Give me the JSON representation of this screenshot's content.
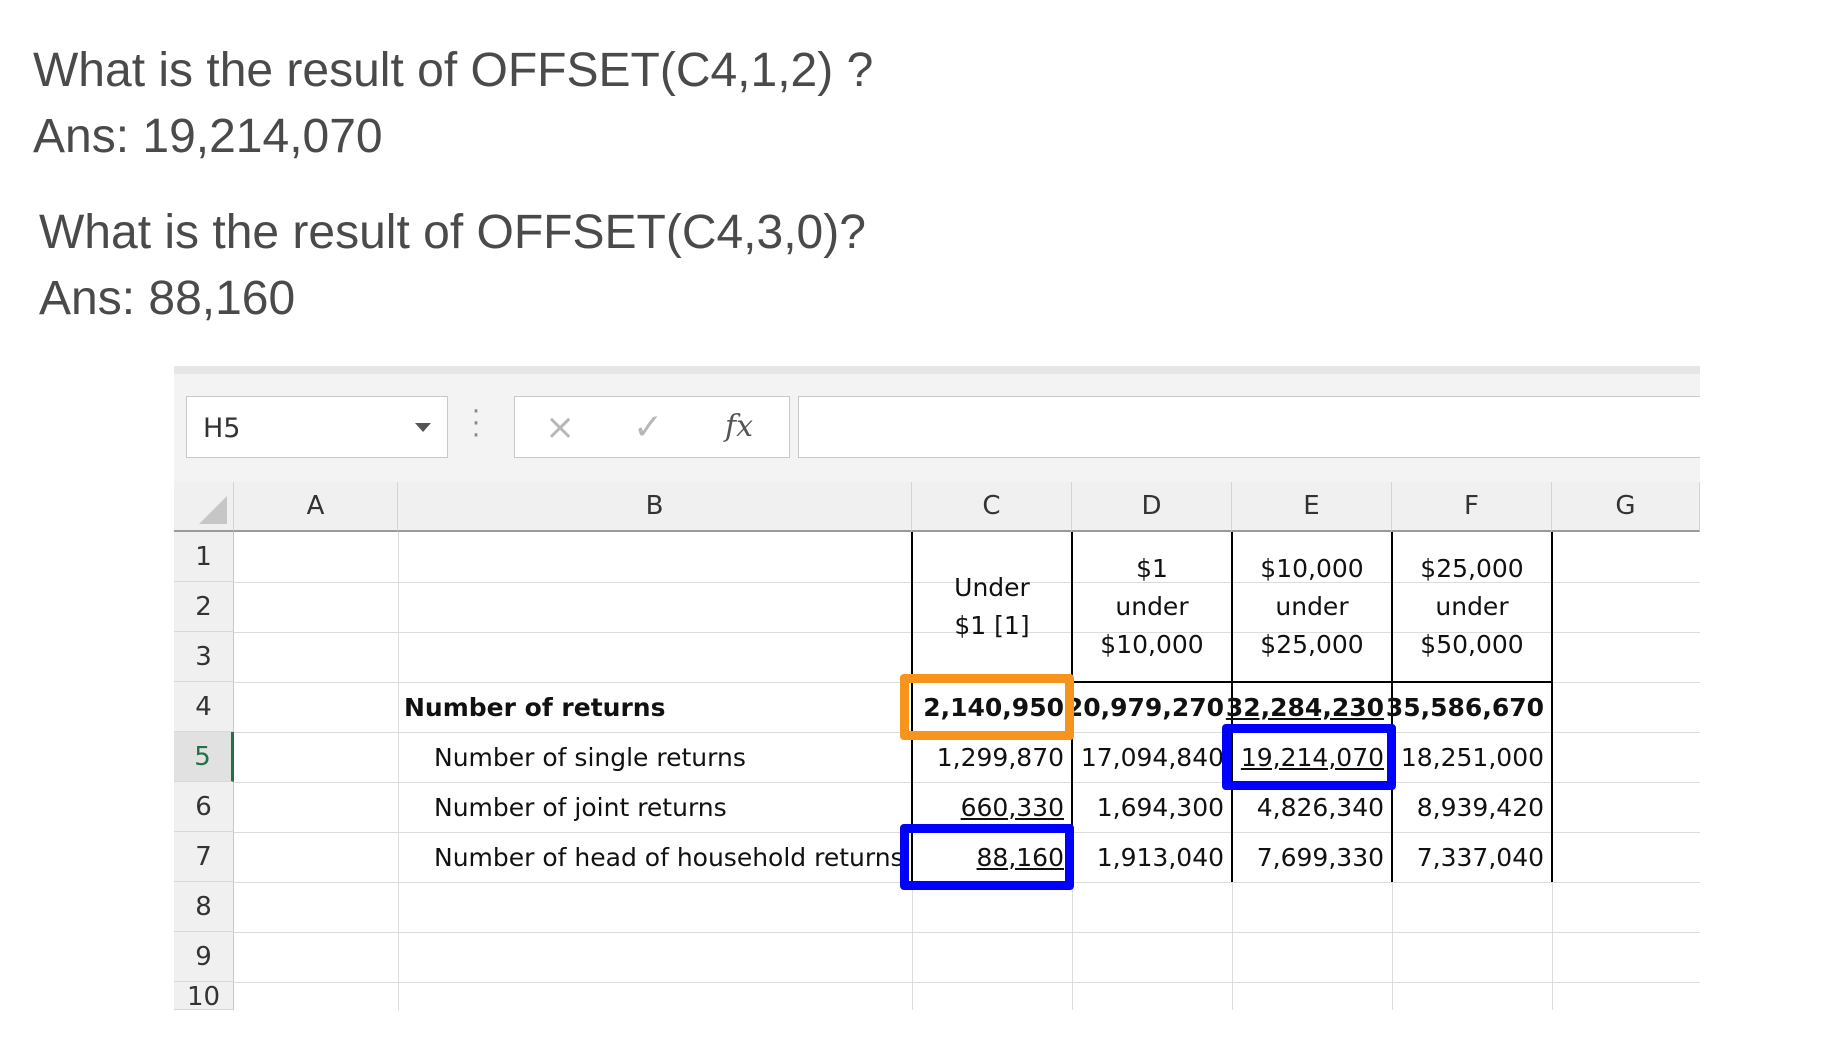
{
  "qa": [
    {
      "question": "What is the result of OFFSET(C4,1,2) ?",
      "answer": "Ans: 19,214,070"
    },
    {
      "question": "What is the result of OFFSET(C4,3,0)?",
      "answer": "Ans: 88,160"
    }
  ],
  "excel": {
    "name_box": "H5",
    "cancel_icon": "×",
    "enter_icon": "✓",
    "fx_label": "fx",
    "formula_value": "",
    "columns": [
      "A",
      "B",
      "C",
      "D",
      "E",
      "F",
      "G"
    ],
    "rows": [
      "1",
      "2",
      "3",
      "4",
      "5",
      "6",
      "7",
      "8",
      "9",
      "10"
    ],
    "active_row": "5",
    "headers": {
      "C": "Under\n$1 [1]",
      "D": "$1\nunder\n$10,000",
      "E": "$10,000\nunder\n$25,000",
      "F": "$25,000\nunder\n$50,000"
    },
    "data_rows": [
      {
        "label": "Number of returns",
        "C": "2,140,950",
        "D": "20,979,270",
        "E": "32,284,230",
        "F": "35,586,670"
      },
      {
        "label": "Number of single returns",
        "C": "1,299,870",
        "D": "17,094,840",
        "E": "19,214,070",
        "F": "18,251,000"
      },
      {
        "label": "Number of joint returns",
        "C": "660,330",
        "D": "1,694,300",
        "E": "4,826,340",
        "F": "8,939,420"
      },
      {
        "label": "Number of head of household returns",
        "C": "88,160",
        "D": "1,913,040",
        "E": "7,699,330",
        "F": "7,337,040"
      }
    ],
    "highlight_colors": {
      "origin": "#f7941d",
      "result": "#0000ff"
    }
  }
}
